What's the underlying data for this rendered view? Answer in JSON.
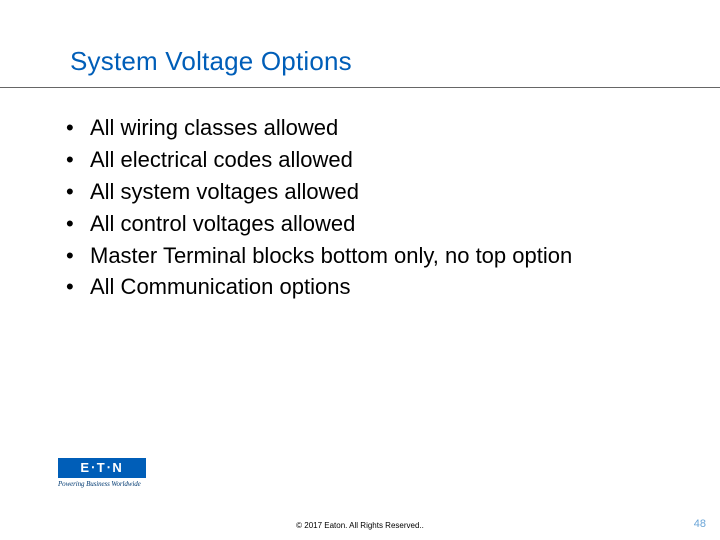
{
  "title": {
    "text": "System Voltage Options",
    "color": "#005eb8",
    "fontsize": 26
  },
  "rule": {
    "color": "#666666"
  },
  "bullets": {
    "items": [
      "All wiring classes allowed",
      "All electrical codes allowed",
      "All system voltages allowed",
      "All control voltages allowed",
      "Master Terminal blocks bottom only, no top option",
      "All Communication options"
    ],
    "fontsize": 22,
    "color": "#000000"
  },
  "logo": {
    "text": "E⋅T⋅N",
    "tagline": "Powering Business Worldwide",
    "brand_color": "#005eb8"
  },
  "footer": {
    "copyright": "© 2017 Eaton. All Rights Reserved.."
  },
  "page": {
    "number": "48",
    "color": "#6aa5d8"
  },
  "background_color": "#ffffff"
}
